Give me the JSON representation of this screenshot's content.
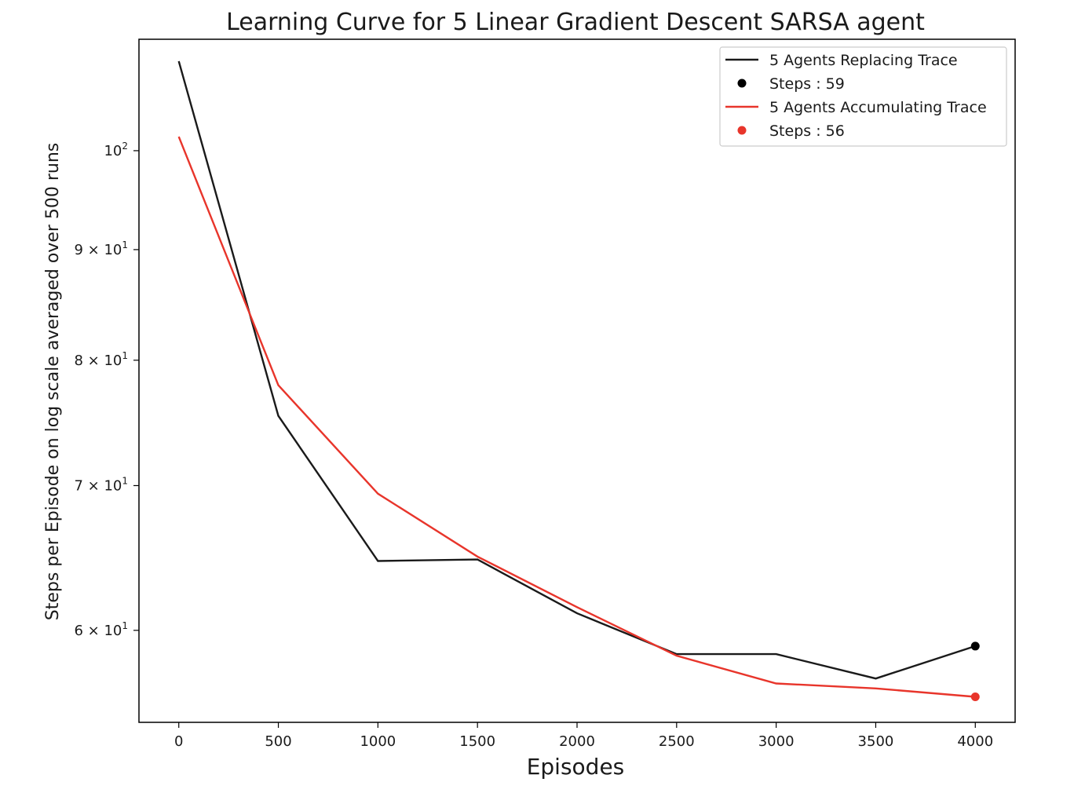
{
  "chart_data": {
    "type": "line",
    "title": "Learning Curve for 5 Linear Gradient Descent SARSA agent",
    "xlabel": "Episodes",
    "ylabel": "Steps per Episode on log scale averaged over 500 runs",
    "x": [
      0,
      500,
      1000,
      1500,
      2000,
      2500,
      3000,
      3500,
      4000
    ],
    "xlim": [
      -200,
      4200
    ],
    "xticks": [
      0,
      500,
      1000,
      1500,
      2000,
      2500,
      3000,
      3500,
      4000
    ],
    "xtick_labels": [
      "0",
      "500",
      "1000",
      "1500",
      "2000",
      "2500",
      "3000",
      "3500",
      "4000"
    ],
    "yscale": "log",
    "ylim": [
      54.4,
      112.6
    ],
    "yticks": [
      {
        "value": 60,
        "mantissa": "6",
        "times": "×",
        "base": "10",
        "exp": "1"
      },
      {
        "value": 70,
        "mantissa": "7",
        "times": "×",
        "base": "10",
        "exp": "1"
      },
      {
        "value": 80,
        "mantissa": "8",
        "times": "×",
        "base": "10",
        "exp": "1"
      },
      {
        "value": 90,
        "mantissa": "9",
        "times": "×",
        "base": "10",
        "exp": "1"
      },
      {
        "value": 100,
        "mantissa": "",
        "times": "",
        "base": "10",
        "exp": "2"
      }
    ],
    "grid": false,
    "legend_position": "top-right",
    "series": [
      {
        "name": "5 Agents Replacing Trace",
        "color": "#1a1a1a",
        "values": [
          110.0,
          75.4,
          64.6,
          64.7,
          61.1,
          58.5,
          58.5,
          57.0,
          59.0
        ]
      },
      {
        "name": "5 Agents Accumulating Trace",
        "color": "#e8352b",
        "values": [
          101.5,
          77.9,
          69.4,
          64.9,
          61.5,
          58.4,
          56.7,
          56.4,
          55.9
        ]
      }
    ],
    "final_points": [
      {
        "name": "Steps : 59",
        "x": 4000,
        "y": 59.0,
        "color": "#000000"
      },
      {
        "name": "Steps : 56",
        "x": 4000,
        "y": 55.9,
        "color": "#e8352b"
      }
    ]
  }
}
